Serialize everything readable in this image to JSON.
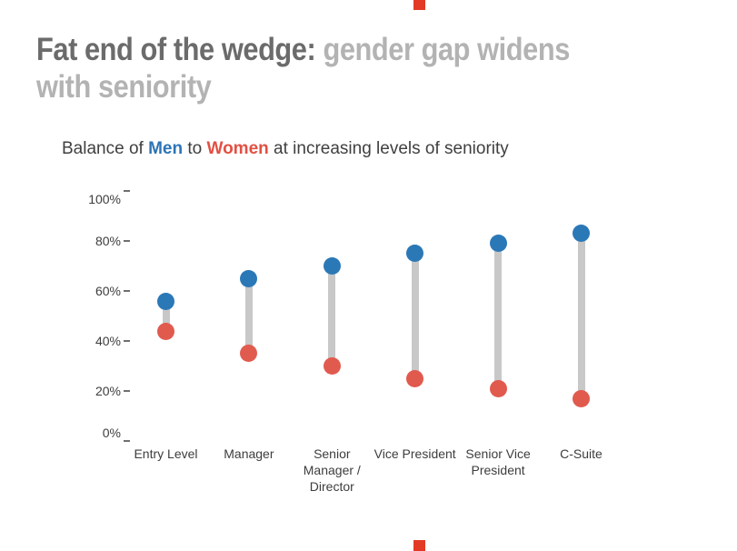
{
  "page": {
    "background": "#ffffff"
  },
  "headline": {
    "dark_part": "Fat end of the wedge: ",
    "light_part_line1": "gender gap widens",
    "light_part_line2": "with seniority",
    "dark_color": "#6b6b6b",
    "light_color": "#b3b3b3"
  },
  "subtitle": {
    "prefix": "Balance of ",
    "men_label": "Men",
    "middle": " to ",
    "women_label": "Women",
    "suffix": " at increasing levels of seniority",
    "men_color": "#2d74b7",
    "women_color": "#e25043"
  },
  "edge_marks": {
    "color": "#e23a24",
    "position": "top-and-bottom-center"
  },
  "chart_data": {
    "type": "scatter",
    "subtype": "dumbbell",
    "title": "Balance of Men to Women at increasing levels of seniority",
    "categories": [
      "Entry Level",
      "Manager",
      "Senior\nManager /\nDirector",
      "Vice President",
      "Senior Vice\nPresident",
      "C-Suite"
    ],
    "series": [
      {
        "name": "Men",
        "color": "#2b78b7",
        "values": [
          56,
          65,
          70,
          75,
          79,
          83
        ]
      },
      {
        "name": "Women",
        "color": "#e15a4e",
        "values": [
          44,
          35,
          30,
          25,
          21,
          17
        ]
      }
    ],
    "xlabel": "",
    "ylabel": "",
    "ylim": [
      0,
      100
    ],
    "yticks": [
      0,
      20,
      40,
      60,
      80,
      100
    ],
    "ytick_suffix": "%",
    "grid": false,
    "legend_position": "in-subtitle",
    "connector_color": "#c8c8c8"
  }
}
